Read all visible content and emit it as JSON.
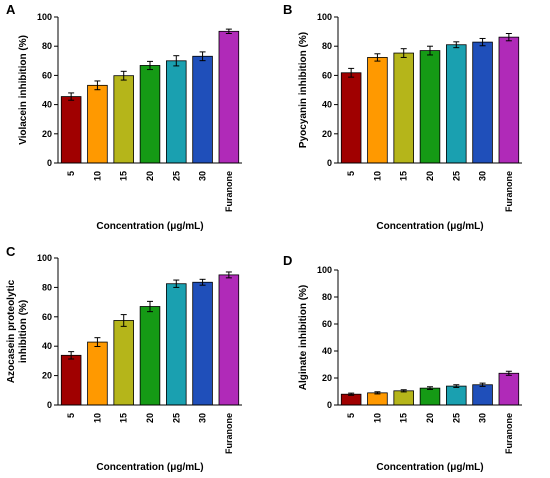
{
  "colors": [
    "#a00000",
    "#ff9900",
    "#b5b51a",
    "#159a15",
    "#1aa0b0",
    "#1f4fba",
    "#b02ab8"
  ],
  "chart_data": [
    {
      "id": "A",
      "type": "bar",
      "panel_label": "A",
      "categories": [
        "5",
        "10",
        "15",
        "20",
        "25",
        "30",
        "Furanone"
      ],
      "values": [
        45.5,
        53.2,
        59.8,
        66.8,
        70.0,
        73.1,
        90.2
      ],
      "errors": [
        2.5,
        3.0,
        3.0,
        2.8,
        3.5,
        3.0,
        1.5
      ],
      "ylabel": "Violacein inhibition (%)",
      "xlabel": "Concentration (μg/mL)",
      "ylim": [
        0,
        100
      ],
      "yticks": [
        0,
        20,
        40,
        60,
        80,
        100
      ]
    },
    {
      "id": "B",
      "type": "bar",
      "panel_label": "B",
      "categories": [
        "5",
        "10",
        "15",
        "20",
        "25",
        "30",
        "Furanone"
      ],
      "values": [
        61.8,
        72.3,
        75.3,
        77.0,
        81.0,
        82.8,
        86.2
      ],
      "errors": [
        3.0,
        2.5,
        3.0,
        3.0,
        2.0,
        2.5,
        2.5
      ],
      "ylabel": "Pyocyanin inhibition (%)",
      "xlabel": "Concentration (μg/mL)",
      "ylim": [
        0,
        100
      ],
      "yticks": [
        0,
        20,
        40,
        60,
        80,
        100
      ]
    },
    {
      "id": "C",
      "type": "bar",
      "panel_label": "C",
      "categories": [
        "5",
        "10",
        "15",
        "20",
        "25",
        "30",
        "Furanone"
      ],
      "values": [
        33.8,
        42.8,
        57.5,
        67.0,
        82.5,
        83.5,
        88.5
      ],
      "errors": [
        2.5,
        3.0,
        4.0,
        3.5,
        2.5,
        2.0,
        2.0
      ],
      "ylabel_lines": [
        "Azocasein proteolytic",
        "inhibition (%)"
      ],
      "xlabel": "Concentration (μg/mL)",
      "ylim": [
        0,
        100
      ],
      "yticks": [
        0,
        20,
        40,
        60,
        80,
        100
      ]
    },
    {
      "id": "D",
      "type": "bar",
      "panel_label": "D",
      "categories": [
        "5",
        "10",
        "15",
        "20",
        "25",
        "30",
        "Furanone"
      ],
      "values": [
        8.0,
        9.0,
        10.5,
        12.5,
        14.0,
        15.0,
        23.5
      ],
      "errors": [
        0.8,
        0.8,
        0.8,
        1.0,
        1.0,
        1.2,
        1.5
      ],
      "ylabel": "Alginate inhibition (%)",
      "xlabel": "Concentration (μg/mL)",
      "ylim": [
        0,
        100
      ],
      "yticks": [
        0,
        20,
        40,
        60,
        80,
        100
      ]
    }
  ]
}
